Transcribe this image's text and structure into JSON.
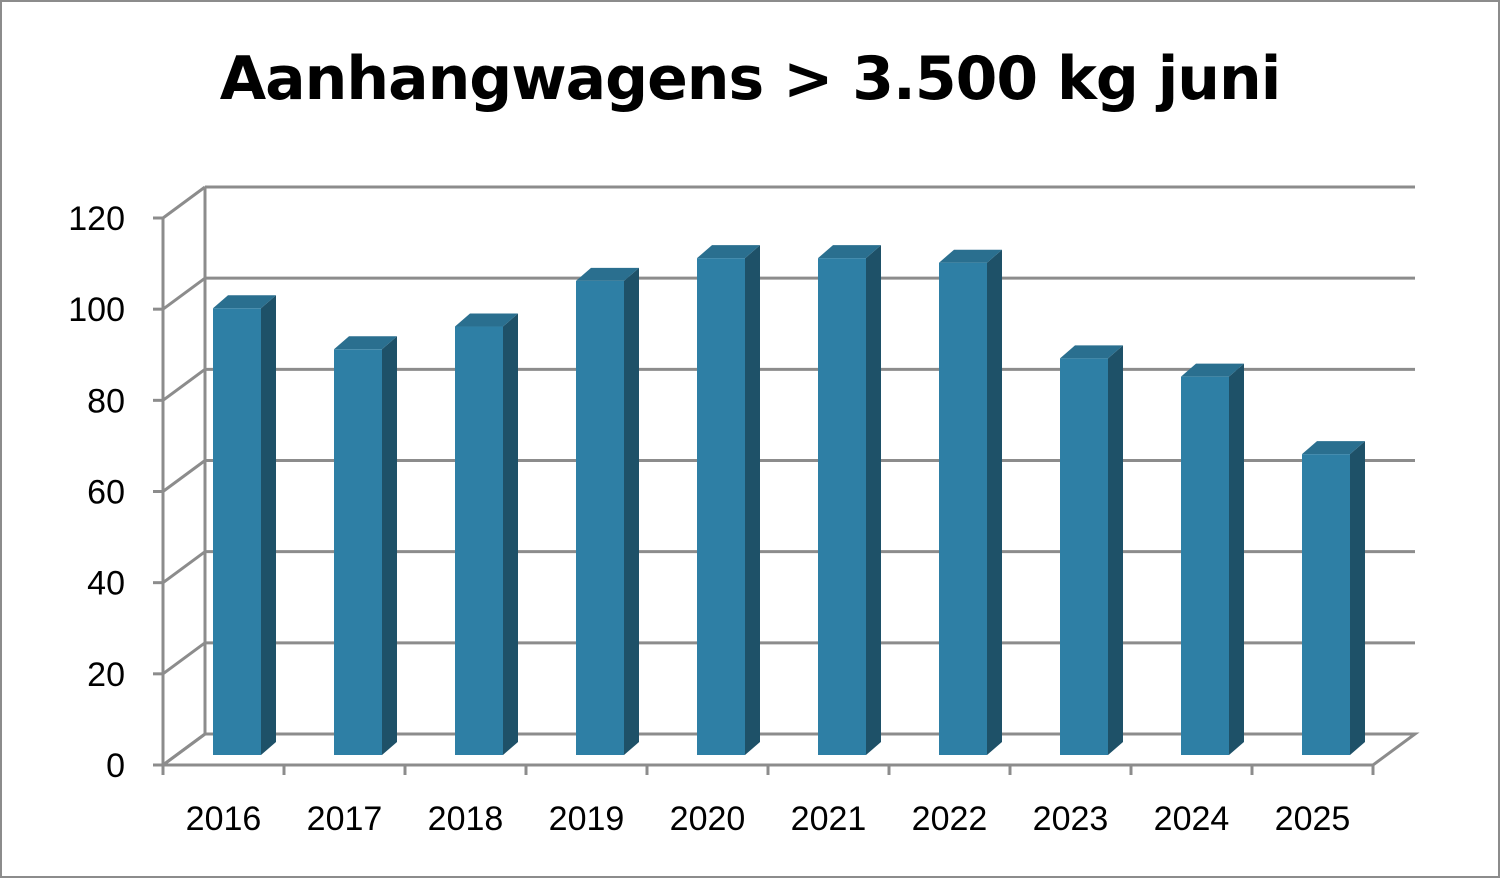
{
  "chart_data": {
    "type": "bar",
    "title": "Aanhangwagens > 3.500 kg juni",
    "categories": [
      "2016",
      "2017",
      "2018",
      "2019",
      "2020",
      "2021",
      "2022",
      "2023",
      "2024",
      "2025"
    ],
    "values": [
      98,
      89,
      94,
      104,
      109,
      109,
      108,
      87,
      83,
      66
    ],
    "ylim": [
      0,
      120
    ],
    "yticks": [
      0,
      20,
      40,
      60,
      80,
      100,
      120
    ],
    "grid": true,
    "legend": "none",
    "style": "3d-column"
  },
  "colors": {
    "bar_front": "#2e7fa5",
    "bar_side": "#1e5168",
    "bar_top": "#2a6f8f",
    "grid": "#8c8c8c"
  }
}
